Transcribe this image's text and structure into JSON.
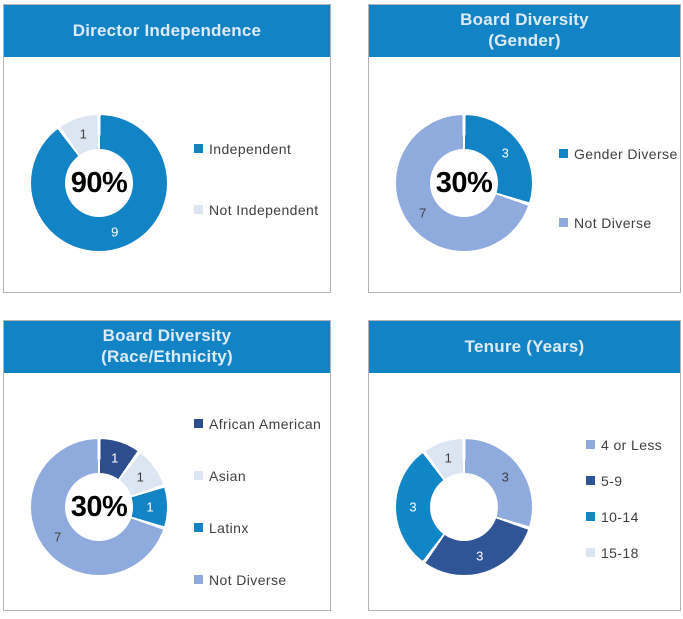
{
  "theme": {
    "header_bg": "#1283C5",
    "header_text": "#DEEBF7",
    "card_border": "#B3B3B3",
    "legend_text": "#404040",
    "center_text": "#000000",
    "slice_gap_color": "#FFFFFF"
  },
  "chart_data": [
    {
      "type": "donut",
      "title": "Director Independence",
      "title_lines": [
        "Director Independence"
      ],
      "center_label": "90%",
      "categories": [
        "Independent",
        "Not Independent"
      ],
      "values": [
        9,
        1
      ],
      "colors": [
        "#1283C5",
        "#DCE6F2"
      ],
      "value_label_colors": [
        "#FFFFFF",
        "#404040"
      ],
      "start_angle_deg": 0,
      "direction": "clockwise",
      "hole_ratio": 0.5,
      "legend_position": "right"
    },
    {
      "type": "donut",
      "title": "Board Diversity (Gender)",
      "title_lines": [
        "Board Diversity",
        "(Gender)"
      ],
      "center_label": "30%",
      "categories": [
        "Gender Diverse",
        "Not Diverse"
      ],
      "values": [
        3,
        7
      ],
      "colors": [
        "#1283C5",
        "#8FAADC"
      ],
      "value_label_colors": [
        "#FFFFFF",
        "#404040"
      ],
      "start_angle_deg": 0,
      "direction": "clockwise",
      "hole_ratio": 0.5,
      "legend_position": "right"
    },
    {
      "type": "donut",
      "title": "Board Diversity (Race/Ethnicity)",
      "title_lines": [
        "Board Diversity",
        "(Race/Ethnicity)"
      ],
      "center_label": "30%",
      "categories": [
        "African American",
        "Asian",
        "Latinx",
        "Not Diverse"
      ],
      "values": [
        1,
        1,
        1,
        7
      ],
      "colors": [
        "#2E4D8E",
        "#DCE6F2",
        "#1283C5",
        "#8FAADC"
      ],
      "value_label_colors": [
        "#FFFFFF",
        "#404040",
        "#FFFFFF",
        "#404040"
      ],
      "start_angle_deg": 0,
      "direction": "clockwise",
      "hole_ratio": 0.5,
      "legend_position": "right"
    },
    {
      "type": "donut",
      "title": "Tenure (Years)",
      "title_lines": [
        "Tenure (Years)"
      ],
      "center_label": "",
      "categories": [
        "4 or Less",
        "5-9",
        "10-14",
        "15-18"
      ],
      "values": [
        3,
        3,
        3,
        1
      ],
      "colors": [
        "#8FAADC",
        "#2F5597",
        "#1186C6",
        "#DCE6F2"
      ],
      "value_label_colors": [
        "#404040",
        "#FFFFFF",
        "#FFFFFF",
        "#404040"
      ],
      "start_angle_deg": 0,
      "direction": "clockwise",
      "hole_ratio": 0.5,
      "legend_position": "right"
    }
  ]
}
